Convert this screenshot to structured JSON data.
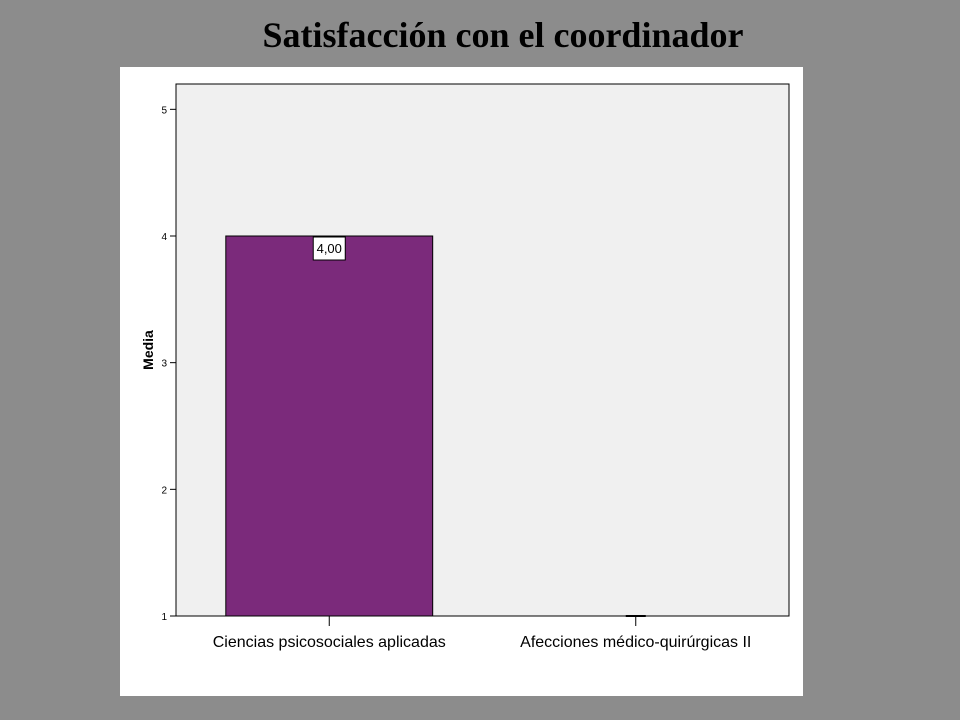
{
  "slide": {
    "title": "Satisfacción con el coordinador"
  },
  "chart_data": {
    "type": "bar",
    "categories": [
      "Ciencias psicosociales aplicadas",
      "Afecciones médico-quirúrgicas II"
    ],
    "values": [
      4.0,
      1.0
    ],
    "data_labels": [
      "4,00",
      ""
    ],
    "title": "",
    "xlabel": "",
    "ylabel": "Media",
    "ylim": [
      1,
      5.2
    ],
    "yticks": [
      1,
      2,
      3,
      4,
      5
    ],
    "grid": false,
    "legend": "none",
    "colors": {
      "bar": "#7b2a7b",
      "plot_background": "#f0f0f0",
      "panel_background": "#ffffff",
      "page_background": "#8c8c8c"
    }
  }
}
